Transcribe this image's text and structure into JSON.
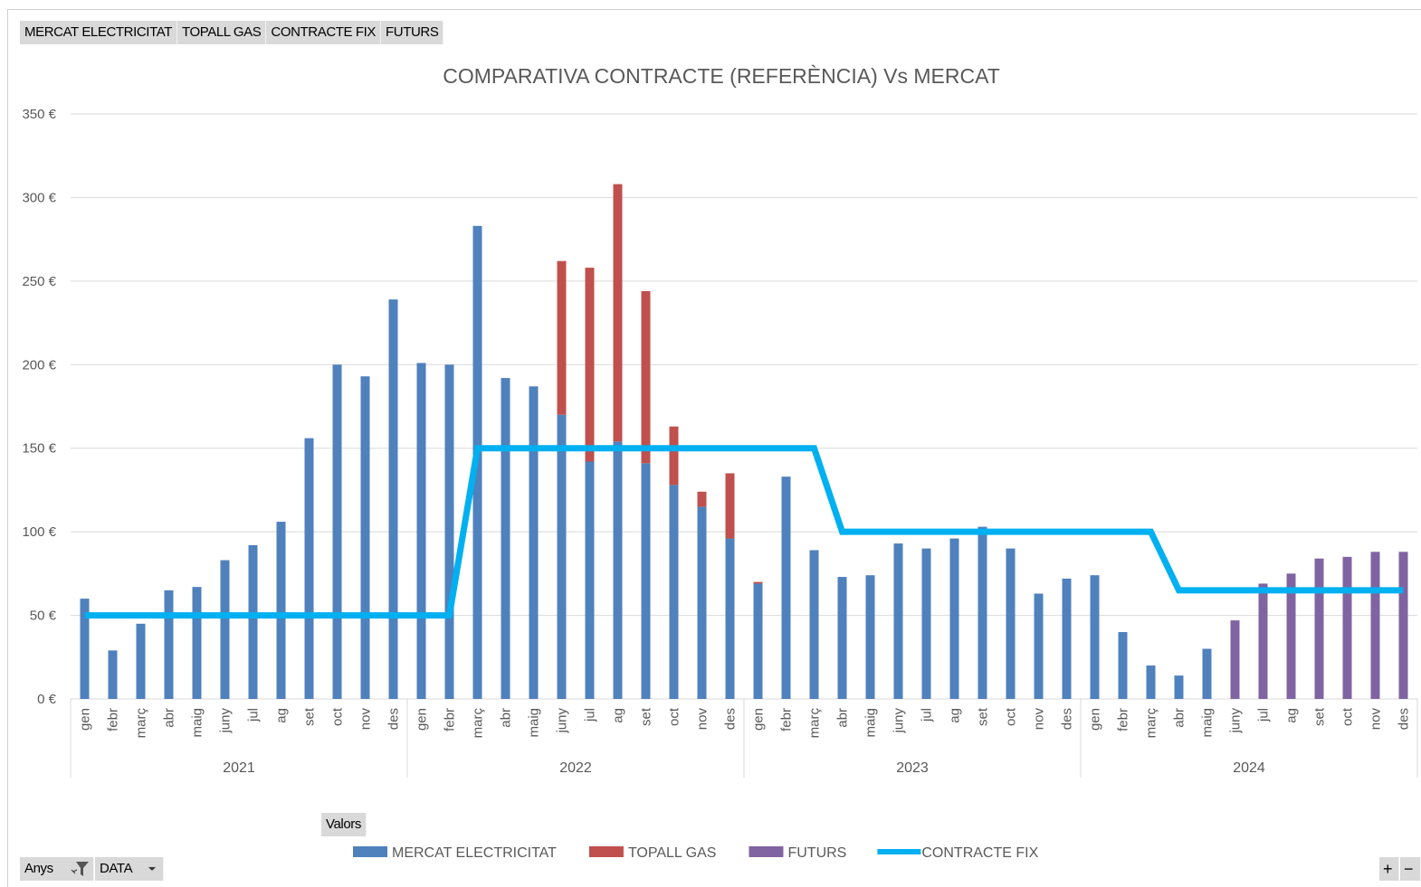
{
  "field_buttons": {
    "top": [
      "MERCAT ELECTRICITAT",
      "TOPALL GAS",
      "CONTRACTE FIX",
      "FUTURS"
    ],
    "values": "Valors",
    "rows": [
      "Anys",
      "DATA"
    ],
    "zoom": [
      "+",
      "−"
    ]
  },
  "chart_data": {
    "type": "bar",
    "stacked": true,
    "title": "COMPARATIVA CONTRACTE (REFERÈNCIA) Vs MERCAT",
    "categories": [
      "gen",
      "febr",
      "març",
      "abr",
      "maig",
      "juny",
      "jul",
      "ag",
      "set",
      "oct",
      "nov",
      "des",
      "gen",
      "febr",
      "març",
      "abr",
      "maig",
      "juny",
      "jul",
      "ag",
      "set",
      "oct",
      "nov",
      "des",
      "gen",
      "febr",
      "març",
      "abr",
      "maig",
      "juny",
      "jul",
      "ag",
      "set",
      "oct",
      "nov",
      "des",
      "gen",
      "febr",
      "març",
      "abr",
      "maig",
      "juny",
      "jul",
      "ag",
      "set",
      "oct",
      "nov",
      "des"
    ],
    "category_groups": [
      "2021",
      "2022",
      "2023",
      "2024"
    ],
    "series": [
      {
        "name": "MERCAT ELECTRICITAT",
        "type": "bar",
        "color": "#4f81bd",
        "values": [
          60,
          29,
          45,
          65,
          67,
          83,
          92,
          106,
          156,
          200,
          193,
          239,
          201,
          200,
          283,
          192,
          187,
          170,
          142,
          154,
          141,
          128,
          115,
          96,
          69,
          133,
          89,
          73,
          74,
          93,
          90,
          96,
          103,
          90,
          63,
          72,
          74,
          40,
          20,
          14,
          30,
          null,
          null,
          null,
          null,
          null,
          null,
          null
        ]
      },
      {
        "name": "TOPALL GAS",
        "type": "bar",
        "color": "#c0504d",
        "values": [
          null,
          null,
          null,
          null,
          null,
          null,
          null,
          null,
          null,
          null,
          null,
          null,
          null,
          null,
          null,
          null,
          null,
          92,
          116,
          154,
          103,
          35,
          9,
          39,
          1,
          null,
          null,
          null,
          null,
          null,
          null,
          null,
          null,
          null,
          null,
          null,
          null,
          null,
          null,
          null,
          null,
          null,
          null,
          null,
          null,
          null,
          null,
          null
        ]
      },
      {
        "name": "FUTURS",
        "type": "bar",
        "color": "#8064a2",
        "values": [
          null,
          null,
          null,
          null,
          null,
          null,
          null,
          null,
          null,
          null,
          null,
          null,
          null,
          null,
          null,
          null,
          null,
          null,
          null,
          null,
          null,
          null,
          null,
          null,
          null,
          null,
          null,
          null,
          null,
          null,
          null,
          null,
          null,
          null,
          null,
          null,
          null,
          null,
          null,
          null,
          null,
          47,
          69,
          75,
          84,
          85,
          88,
          88
        ]
      },
      {
        "name": "CONTRACTE FIX",
        "type": "line",
        "color": "#00b0f0",
        "values": [
          50,
          50,
          50,
          50,
          50,
          50,
          50,
          50,
          50,
          50,
          50,
          50,
          50,
          50,
          150,
          150,
          150,
          150,
          150,
          150,
          150,
          150,
          150,
          150,
          150,
          150,
          150,
          100,
          100,
          100,
          100,
          100,
          100,
          100,
          100,
          100,
          100,
          100,
          100,
          65,
          65,
          65,
          65,
          65,
          65,
          65,
          65,
          65
        ]
      }
    ],
    "ylim": [
      0,
      350
    ],
    "yticks": [
      {
        "value": 0,
        "label": "0 €"
      },
      {
        "value": 50,
        "label": "50 €"
      },
      {
        "value": 100,
        "label": "100 €"
      },
      {
        "value": 150,
        "label": "150 €"
      },
      {
        "value": 200,
        "label": "200 €"
      },
      {
        "value": 250,
        "label": "250 €"
      },
      {
        "value": 300,
        "label": "300 €"
      },
      {
        "value": 350,
        "label": "350 €"
      }
    ],
    "grid": true,
    "legend": "bottom"
  }
}
